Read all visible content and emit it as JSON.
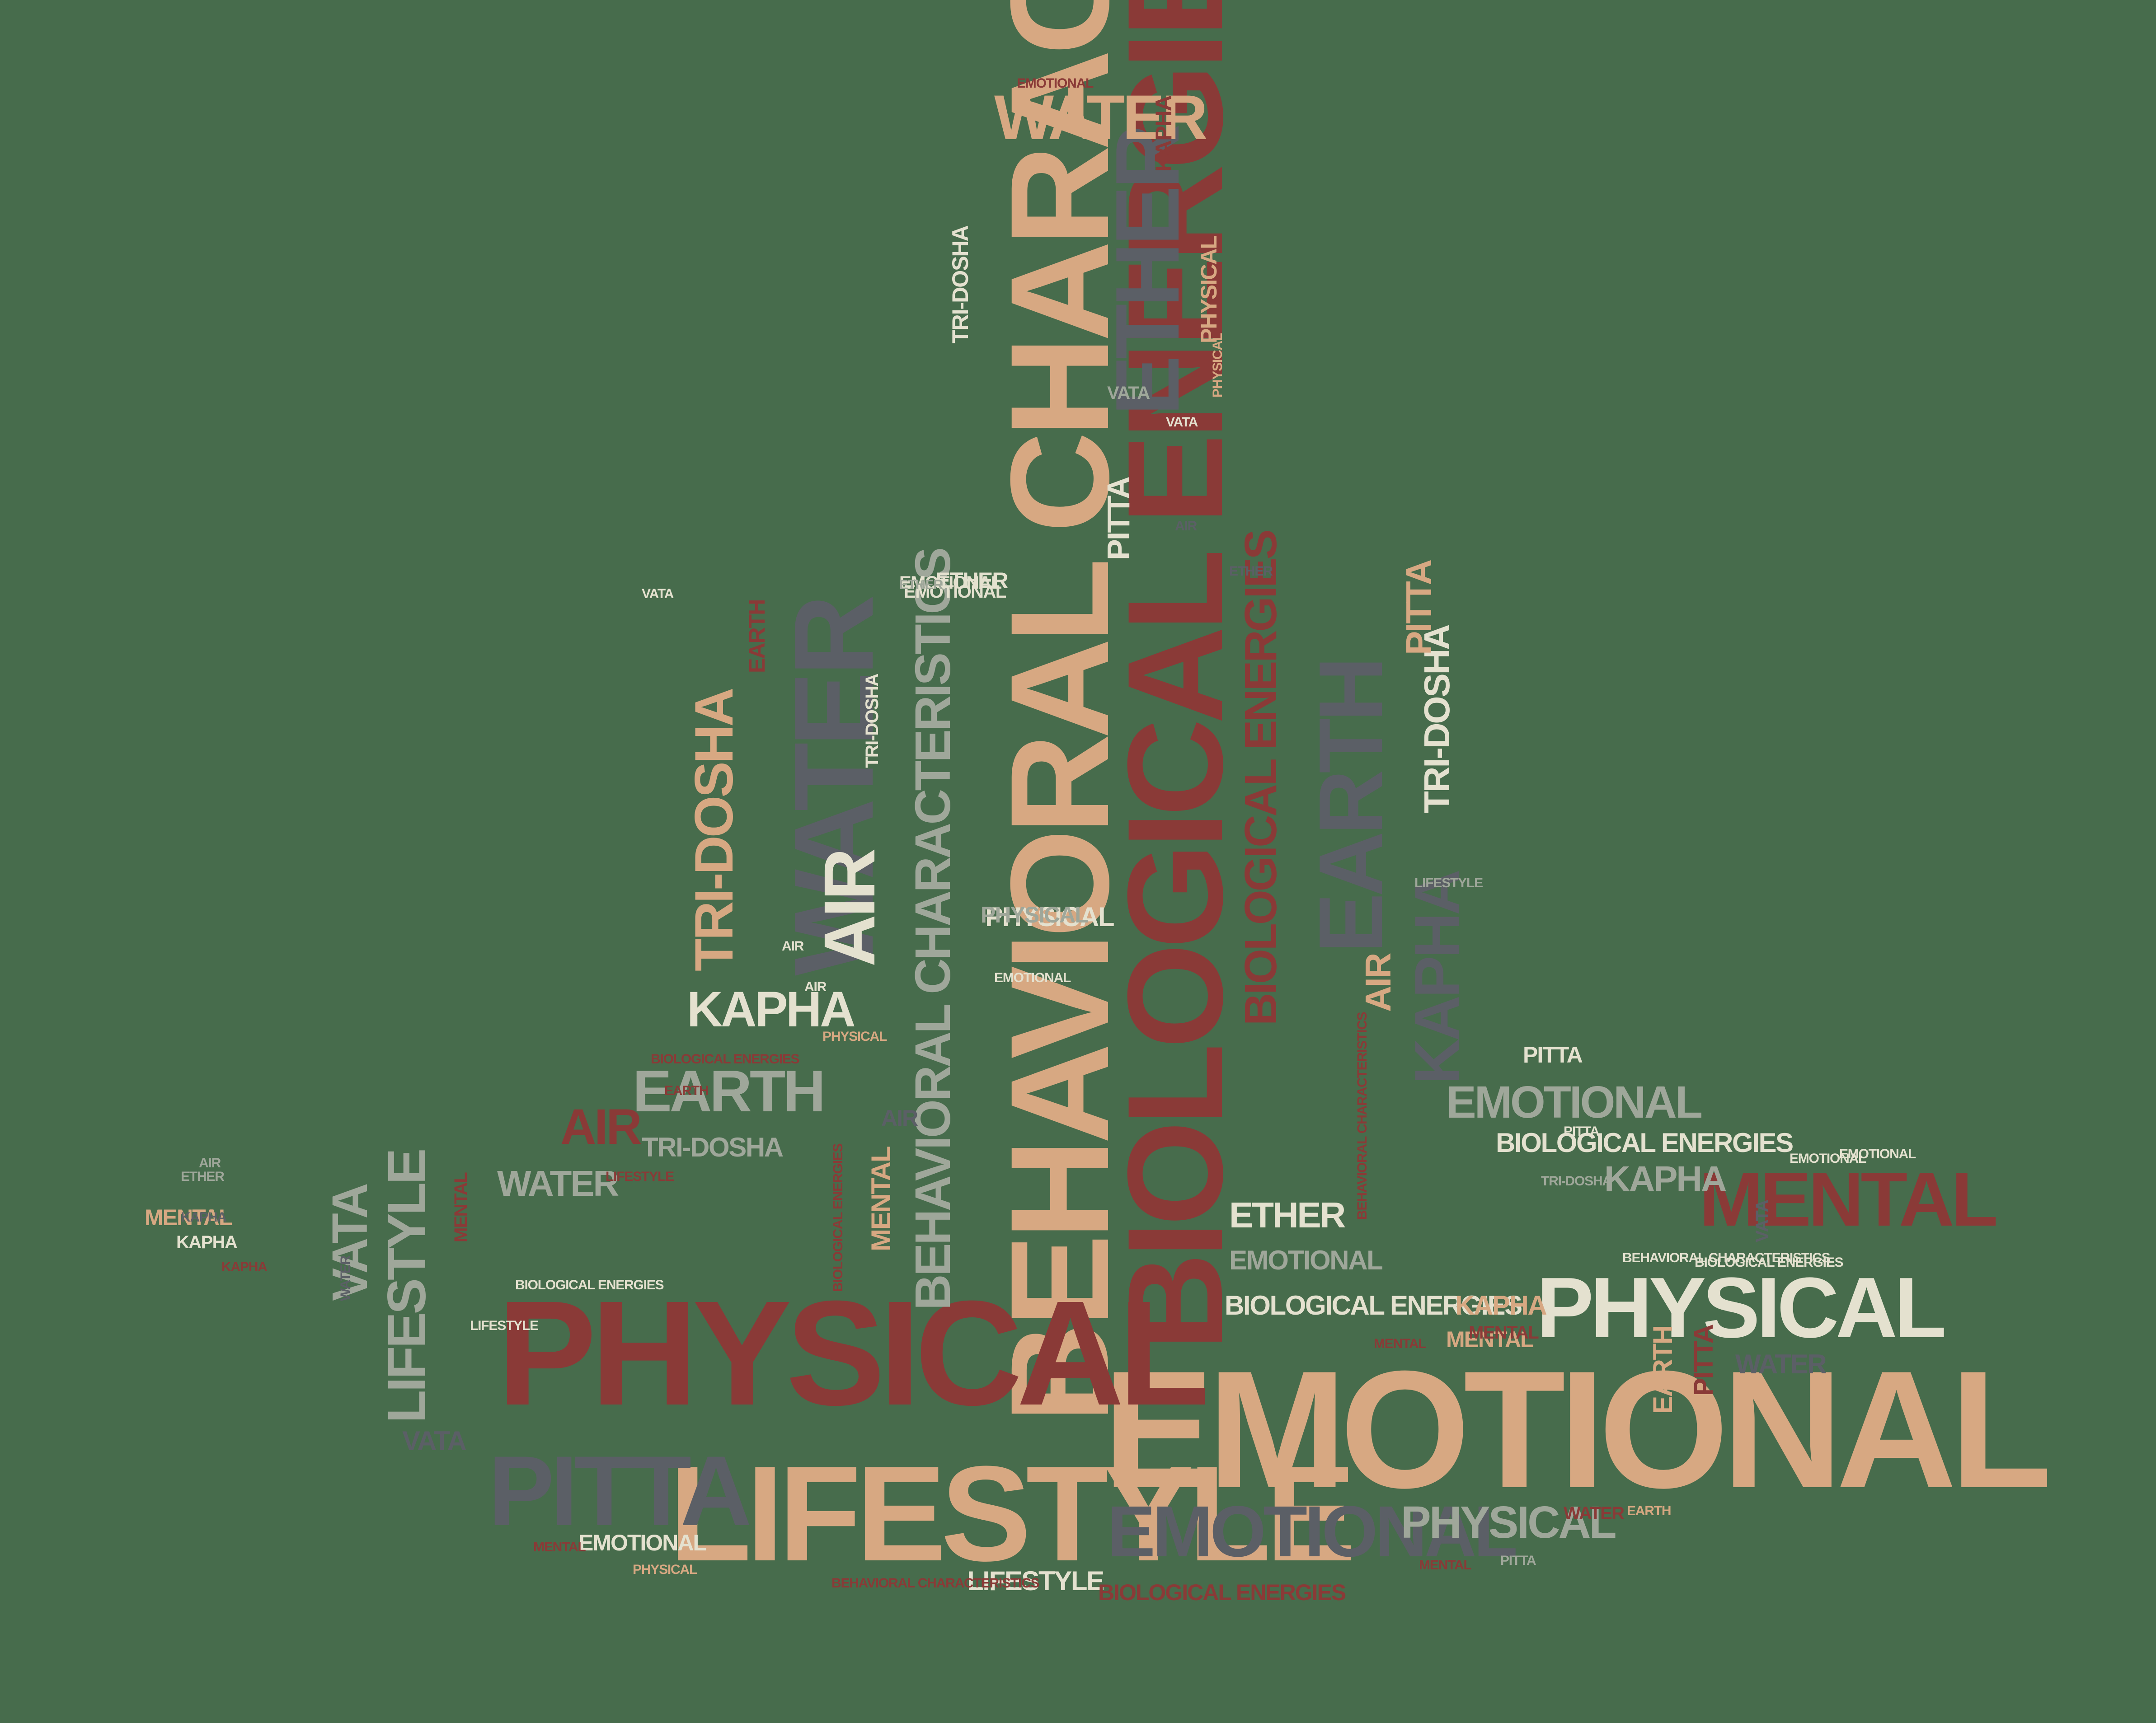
{
  "background": "#476c4c",
  "palette": {
    "tan": "#d7a882",
    "red": "#8a3a37",
    "gray": "#5b5f66",
    "cream": "#e4e1cf",
    "sage": "#9fa79a"
  },
  "shape": "seated meditation figure",
  "words": [
    {
      "text": "BEHAVIORAL CHARACTERISTICS",
      "color": "tan"
    },
    {
      "text": "BIOLOGICAL ENERGIES",
      "color": "red"
    },
    {
      "text": "EMOTIONAL",
      "color": "tan"
    },
    {
      "text": "PHYSICAL",
      "color": "red"
    },
    {
      "text": "LIFESTYLE",
      "color": "tan"
    },
    {
      "text": "PITTA",
      "color": "gray"
    },
    {
      "text": "EMOTIONAL",
      "color": "gray"
    },
    {
      "text": "PHYSICAL",
      "color": "cream"
    },
    {
      "text": "MENTAL",
      "color": "red"
    },
    {
      "text": "ETHER",
      "color": "gray"
    },
    {
      "text": "WATER",
      "color": "gray"
    },
    {
      "text": "WATER",
      "color": "tan"
    },
    {
      "text": "AIR",
      "color": "cream"
    },
    {
      "text": "EARTH",
      "color": "gray"
    },
    {
      "text": "KAPHA",
      "color": "gray"
    },
    {
      "text": "TRI-DOSHA",
      "color": "tan"
    },
    {
      "text": "BEHAVIORAL CHARACTERISTICS",
      "color": "sage"
    },
    {
      "text": "BIOLOGICAL ENERGIES",
      "color": "red"
    },
    {
      "text": "PITTA",
      "color": "cream"
    },
    {
      "text": "EMOTIONAL",
      "color": "sage"
    },
    {
      "text": "PHYSICAL",
      "color": "sage"
    },
    {
      "text": "LIFESTYLE",
      "color": "sage"
    },
    {
      "text": "KAPHA",
      "color": "cream"
    },
    {
      "text": "EARTH",
      "color": "sage"
    },
    {
      "text": "AIR",
      "color": "red"
    },
    {
      "text": "ETHER",
      "color": "cream"
    },
    {
      "text": "VATA",
      "color": "sage"
    },
    {
      "text": "VATA",
      "color": "gray"
    },
    {
      "text": "LIFESTYLE",
      "color": "cream"
    },
    {
      "text": "KAPHA",
      "color": "sage"
    },
    {
      "text": "EMOTIONAL",
      "color": "sage"
    },
    {
      "text": "BIOLOGICAL ENERGIES",
      "color": "cream"
    },
    {
      "text": "BIOLOGICAL ENERGIES",
      "color": "cream"
    },
    {
      "text": "PHYSICAL",
      "color": "cream"
    },
    {
      "text": "KAPHA",
      "color": "tan"
    },
    {
      "text": "TRI-DOSHA",
      "color": "cream"
    },
    {
      "text": "TRI-DOSHA",
      "color": "sage"
    },
    {
      "text": "ETHER",
      "color": "cream"
    },
    {
      "text": "EMOTIONAL",
      "color": "cream"
    },
    {
      "text": "MENTAL",
      "color": "tan"
    },
    {
      "text": "ETHER",
      "color": "sage"
    },
    {
      "text": "PHYSICAL",
      "color": "sage"
    },
    {
      "text": "WATER",
      "color": "sage"
    },
    {
      "text": "MENTAL",
      "color": "tan"
    },
    {
      "text": "PITTA",
      "color": "tan"
    },
    {
      "text": "VATA",
      "color": "sage"
    },
    {
      "text": "EARTH",
      "color": "tan"
    },
    {
      "text": "PITTA",
      "color": "red"
    },
    {
      "text": "WATER",
      "color": "gray"
    },
    {
      "text": "LIFESTYLE",
      "color": "cream"
    },
    {
      "text": "BIOLOGICAL ENERGIES",
      "color": "red"
    },
    {
      "text": "BEHAVIORAL CHARACTERISTICS",
      "color": "cream"
    },
    {
      "text": "EMOTIONAL",
      "color": "cream"
    },
    {
      "text": "MENTAL",
      "color": "red"
    },
    {
      "text": "BEHAVIORAL CHARACTERISTICS",
      "color": "red"
    },
    {
      "text": "BIOLOGICAL ENERGIES",
      "color": "red"
    },
    {
      "text": "BIOLOGICAL ENERGIES",
      "color": "cream"
    },
    {
      "text": "WATER",
      "color": "red"
    },
    {
      "text": "PHYSICAL",
      "color": "tan"
    },
    {
      "text": "AIR",
      "color": "tan"
    },
    {
      "text": "KAPHA",
      "color": "cream"
    },
    {
      "text": "LIFESTYLE",
      "color": "red"
    },
    {
      "text": "EARTH",
      "color": "red"
    },
    {
      "text": "TRI-DOSHA",
      "color": "cream"
    },
    {
      "text": "WATER",
      "color": "gray"
    },
    {
      "text": "KAPHA",
      "color": "red"
    },
    {
      "text": "MENTAL",
      "color": "tan"
    },
    {
      "text": "AIR",
      "color": "gray"
    },
    {
      "text": "TRI-DOSHA",
      "color": "cream"
    },
    {
      "text": "VATA",
      "color": "cream"
    },
    {
      "text": "PITTA",
      "color": "cream"
    },
    {
      "text": "MENTAL",
      "color": "red"
    },
    {
      "text": "VATA",
      "color": "gray"
    },
    {
      "text": "KAPHA",
      "color": "red"
    },
    {
      "text": "EMOTIONAL",
      "color": "cream"
    },
    {
      "text": "EMOTIONAL",
      "color": "cream"
    },
    {
      "text": "MENTAL",
      "color": "red"
    },
    {
      "text": "PHYSICAL",
      "color": "tan"
    },
    {
      "text": "BEHAVIORAL CHARACTERISTICS",
      "color": "red"
    },
    {
      "text": "PITTA",
      "color": "cream"
    },
    {
      "text": "AIR",
      "color": "gray"
    },
    {
      "text": "EARTH",
      "color": "red"
    },
    {
      "text": "PITTA",
      "color": "sage"
    },
    {
      "text": "PHYSICAL",
      "color": "tan"
    },
    {
      "text": "ETHER",
      "color": "gray"
    },
    {
      "text": "MENTAL",
      "color": "red"
    },
    {
      "text": "EMOTIONAL",
      "color": "red"
    },
    {
      "text": "TRI-DOSHA",
      "color": "sage"
    },
    {
      "text": "BIOLOGICAL ENERGIES",
      "color": "red"
    },
    {
      "text": "MENTAL",
      "color": "red"
    },
    {
      "text": "AIR",
      "color": "sage"
    },
    {
      "text": "EMOTIONAL",
      "color": "cream"
    },
    {
      "text": "AIR",
      "color": "cream"
    },
    {
      "text": "KAPHA",
      "color": "gray"
    },
    {
      "text": "AIR",
      "color": "cream"
    },
    {
      "text": "PHYSICAL",
      "color": "tan"
    },
    {
      "text": "VATA",
      "color": "cream"
    },
    {
      "text": "LIFESTYLE",
      "color": "sage"
    },
    {
      "text": "EARTH",
      "color": "tan"
    },
    {
      "text": "ETHER",
      "color": "sage"
    },
    {
      "text": "EMOTIONAL",
      "color": "cream"
    },
    {
      "text": "BIOLOGICAL ENERGIES",
      "color": "cream"
    }
  ]
}
